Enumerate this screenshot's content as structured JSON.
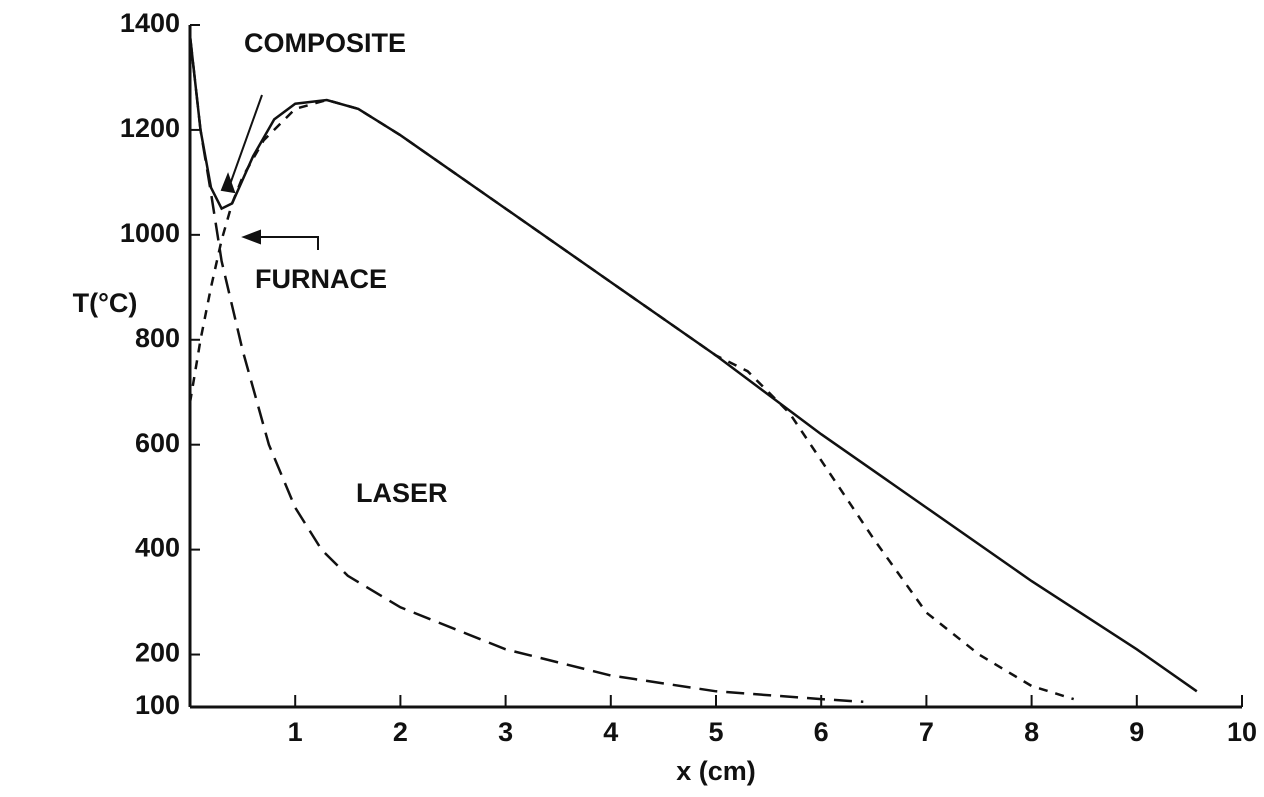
{
  "chart_data": {
    "type": "line",
    "xlabel": "x (cm)",
    "ylabel": "T(°C)",
    "annotations": [
      "COMPOSITE",
      "FURNACE",
      "LASER"
    ],
    "xlim": [
      0,
      10
    ],
    "ylim": [
      100,
      1400
    ],
    "xticks": [
      1,
      2,
      3,
      4,
      5,
      6,
      7,
      8,
      9,
      10
    ],
    "yticks": [
      100,
      200,
      400,
      600,
      800,
      1000,
      1200,
      1400
    ],
    "series": [
      {
        "name": "COMPOSITE",
        "color": "#111111",
        "style": "solid",
        "x": [
          0,
          0.1,
          0.2,
          0.3,
          0.4,
          0.6,
          0.8,
          1.0,
          1.3,
          1.6,
          2,
          3,
          4,
          5,
          6,
          7,
          8,
          9,
          9.57
        ],
        "values": [
          1380,
          1200,
          1090,
          1050,
          1060,
          1150,
          1220,
          1250,
          1257,
          1240,
          1190,
          1050,
          910,
          770,
          620,
          480,
          340,
          210,
          130
        ]
      },
      {
        "name": "LASER",
        "color": "#111111",
        "style": "long-dash",
        "x": [
          0,
          0.1,
          0.2,
          0.3,
          0.5,
          0.75,
          1,
          1.25,
          1.5,
          2,
          3,
          4,
          5,
          6,
          6.4
        ],
        "values": [
          1380,
          1200,
          1080,
          950,
          780,
          600,
          480,
          400,
          350,
          290,
          210,
          160,
          130,
          115,
          110
        ]
      },
      {
        "name": "FURNACE",
        "color": "#111111",
        "style": "short-dash",
        "x": [
          0,
          0.1,
          0.2,
          0.3,
          0.4,
          0.5,
          0.7,
          1,
          1.3,
          1.6,
          2,
          3,
          4,
          5,
          5.3,
          5.7,
          6,
          6.5,
          7,
          7.5,
          8,
          8.4
        ],
        "values": [
          680,
          800,
          900,
          990,
          1060,
          1110,
          1180,
          1240,
          1257,
          1240,
          1190,
          1050,
          910,
          770,
          740,
          660,
          570,
          420,
          280,
          200,
          140,
          115
        ]
      }
    ]
  }
}
